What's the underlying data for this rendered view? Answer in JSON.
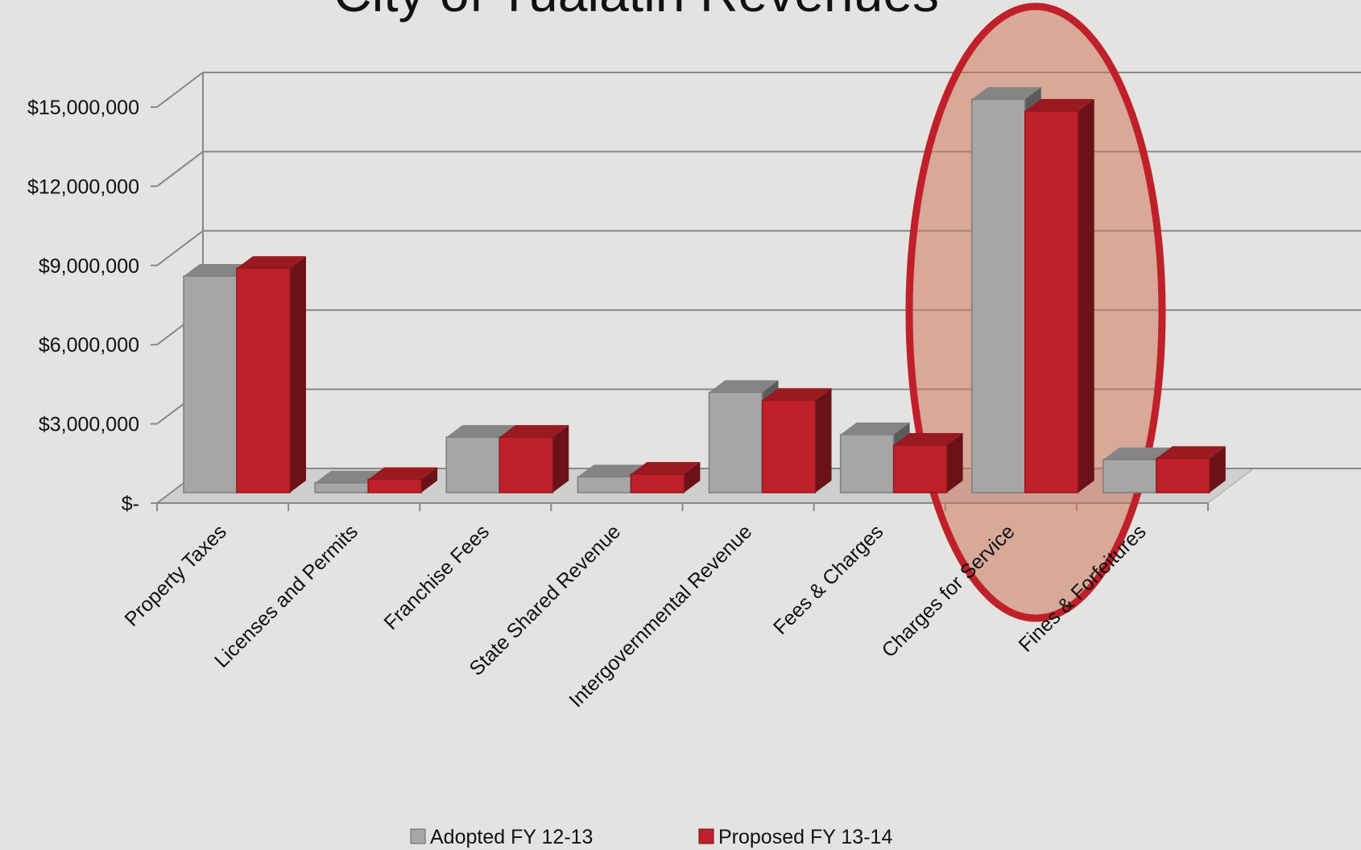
{
  "chart_data": {
    "type": "bar",
    "title": "City of Tualatin Revenues",
    "categories": [
      "Property Taxes",
      "Licenses and Permits",
      "Franchise Fees",
      "State Shared Revenue",
      "Intergovernmental Revenue",
      "Fees & Charges",
      "Charges for Service",
      "Fines & Forfeitures"
    ],
    "series": [
      {
        "name": "Adopted FY 12-13",
        "color": "#a6a6a6",
        "values": [
          8200000,
          370000,
          2100000,
          600000,
          3800000,
          2200000,
          14900000,
          1250000
        ]
      },
      {
        "name": "Proposed FY 13-14",
        "color": "#c0202a",
        "values": [
          8500000,
          500000,
          2100000,
          700000,
          3500000,
          1800000,
          14450000,
          1300000
        ]
      }
    ],
    "ylim": [
      0,
      15000000
    ],
    "yticks": [
      {
        "value": 0,
        "label": "$-"
      },
      {
        "value": 3000000,
        "label": "$3,000,000"
      },
      {
        "value": 6000000,
        "label": "$6,000,000"
      },
      {
        "value": 9000000,
        "label": "$9,000,000"
      },
      {
        "value": 12000000,
        "label": "$12,000,000"
      },
      {
        "value": 15000000,
        "label": "$15,000,000"
      }
    ],
    "grid": true,
    "legend": "bottom"
  }
}
